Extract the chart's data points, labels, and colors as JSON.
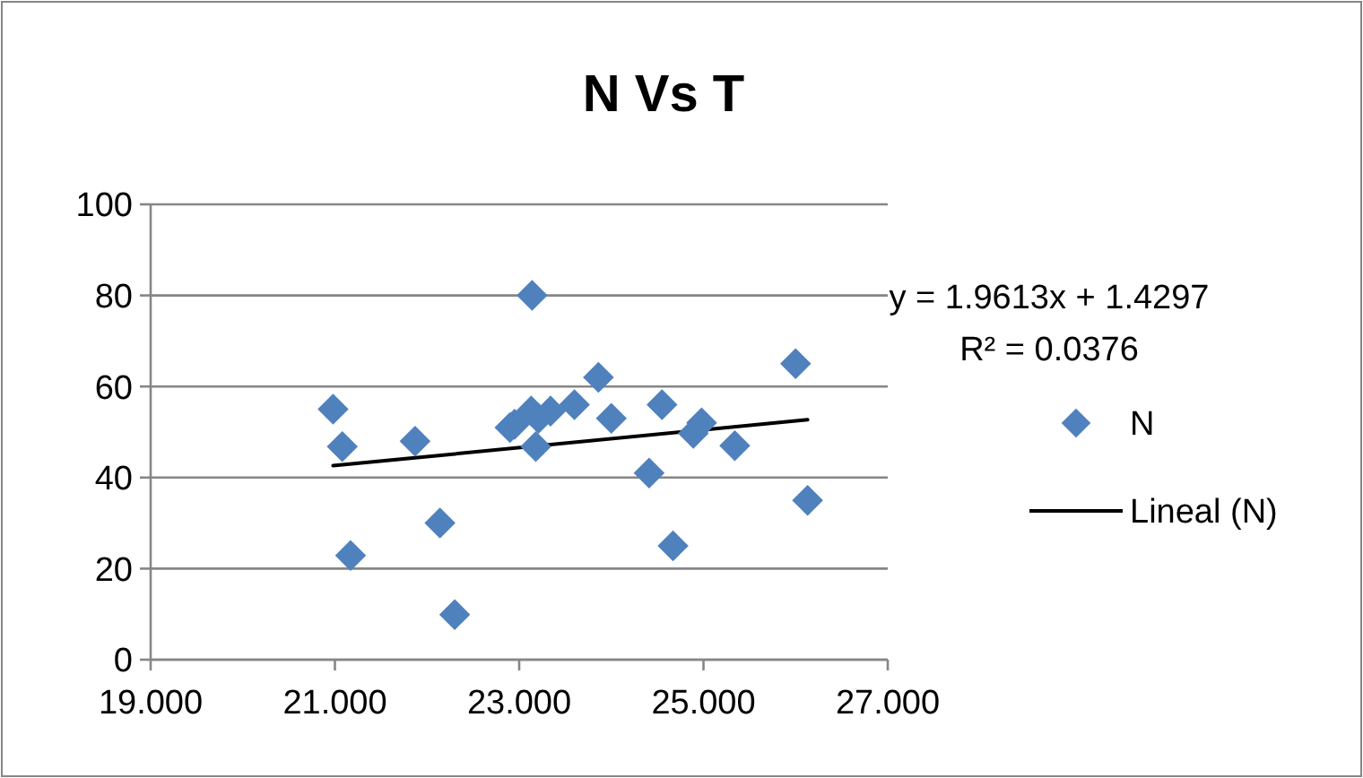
{
  "chart_data": {
    "type": "scatter",
    "title": "N Vs T",
    "xlim": [
      19,
      27
    ],
    "xticks": [
      {
        "value": 19,
        "label": "19.000"
      },
      {
        "value": 21,
        "label": "21.000"
      },
      {
        "value": 23,
        "label": "23.000"
      },
      {
        "value": 25,
        "label": "25.000"
      },
      {
        "value": 27,
        "label": "27.000"
      }
    ],
    "ylim": [
      0,
      100
    ],
    "yticks": [
      0,
      20,
      40,
      60,
      80,
      100
    ],
    "grid": "y",
    "legend": "right",
    "annotations": [
      "y = 1.9613x + 1.4297",
      "R² = 0.0376"
    ],
    "series": [
      {
        "name": "N",
        "color": "#4f81bd",
        "marker": "diamond",
        "x": [
          20.98,
          21.08,
          21.17,
          21.87,
          22.14,
          22.3,
          22.9,
          22.95,
          23.14,
          23.13,
          23.18,
          23.21,
          23.34,
          23.6,
          23.86,
          24.0,
          24.41,
          24.55,
          24.67,
          24.89,
          24.98,
          25.34,
          26.0,
          26.13
        ],
        "values": [
          55,
          46.8,
          22.9,
          48,
          30,
          9.9,
          51,
          51.7,
          80,
          54.6,
          46.8,
          53,
          54.6,
          56,
          62,
          53,
          41,
          56,
          25,
          49.7,
          52,
          47,
          65,
          35
        ]
      },
      {
        "name": "Lineal (N)",
        "type": "line",
        "color": "#000000",
        "marker": "none",
        "line_style": "solid",
        "x": [
          20.98,
          26.13
        ],
        "values": [
          42.6,
          52.7
        ]
      }
    ]
  }
}
